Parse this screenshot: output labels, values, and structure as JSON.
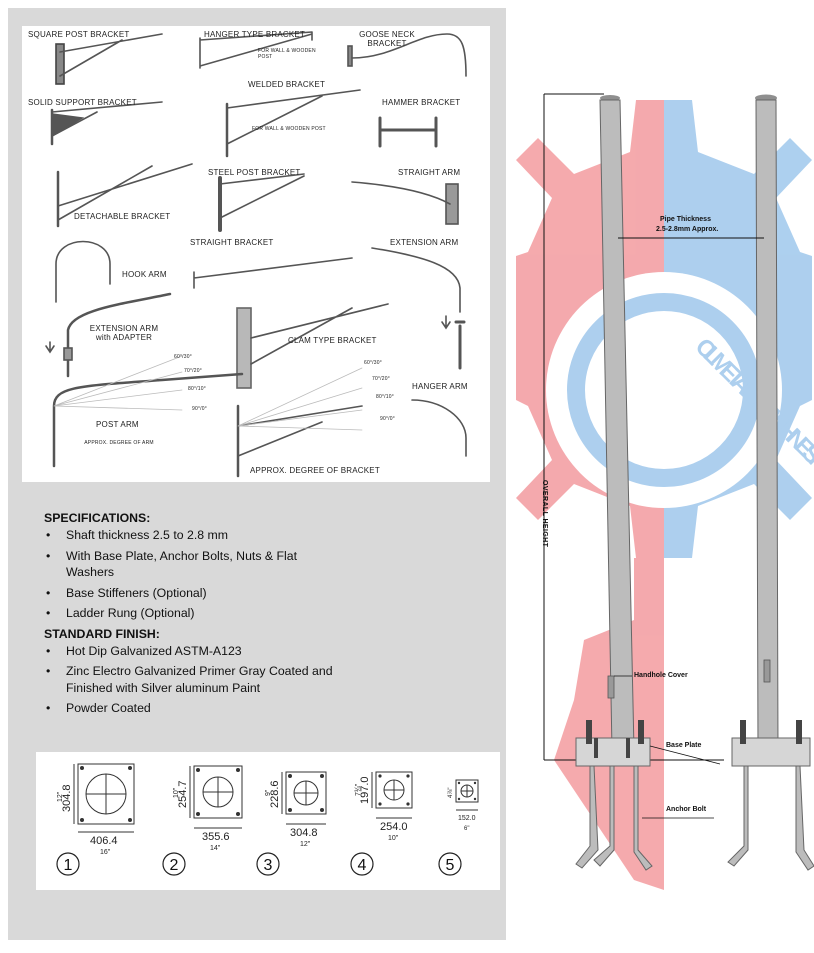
{
  "brackets": {
    "square_post": "SQUARE POST BRACKET",
    "hanger_type": "HANGER TYPE BRACKET",
    "hanger_note": "FOR WALL & WOODEN POST",
    "goose_neck": "GOOSE NECK BRACKET",
    "solid_support": "SOLID SUPPORT BRACKET",
    "welded": "WELDED BRACKET",
    "welded_note": "FOR WALL & WOODEN POST",
    "hammer": "HAMMER BRACKET",
    "detachable": "DETACHABLE BRACKET",
    "steel_post": "STEEL POST BRACKET",
    "straight_arm": "STRAIGHT ARM",
    "straight_bracket": "STRAIGHT BRACKET",
    "extension_arm": "EXTENSION ARM",
    "hook_arm": "HOOK ARM",
    "extension_adapter": "EXTENSION ARM with ADAPTER",
    "clam_type": "CLAM TYPE BRACKET",
    "post_arm": "POST ARM",
    "approx_arm": "APPROX. DEGREE OF ARM",
    "hanger_arm": "HANGER ARM",
    "approx_bracket": "APPROX. DEGREE OF BRACKET",
    "deg_arm": [
      "60°/30°",
      "70°/20°",
      "80°/10°",
      "90°/0°"
    ],
    "deg_bracket": [
      "60°/30°",
      "70°/20°",
      "80°/10°",
      "90°/0°"
    ]
  },
  "specs": {
    "heading": "SPECIFICATIONS:",
    "items": [
      "Shaft thickness 2.5 to 2.8 mm",
      "With Base Plate, Anchor Bolts, Nuts & Flat Washers",
      "Base Stiffeners (Optional)",
      "Ladder Rung (Optional)"
    ],
    "finish_heading": "STANDARD FINISH:",
    "finish_items": [
      "Hot Dip Galvanized ASTM-A123",
      "Zinc Electro Galvanized Primer Gray Coated and Finished with Silver aluminum Paint",
      "Powder Coated"
    ]
  },
  "plates": [
    {
      "num": "1",
      "side": "304.8",
      "side_in": "12\"",
      "bottom": "406.4",
      "bottom_in": "16\""
    },
    {
      "num": "2",
      "side": "254.7",
      "side_in": "10\"",
      "bottom": "355.6",
      "bottom_in": "14\""
    },
    {
      "num": "3",
      "side": "228.6",
      "side_in": "9\"",
      "bottom": "304.8",
      "bottom_in": "12\""
    },
    {
      "num": "4",
      "side": "197.0",
      "side_in": "7¾\"",
      "bottom": "254.0",
      "bottom_in": "10\""
    },
    {
      "num": "5",
      "side": "",
      "side_in": "4⅞\"",
      "bottom": "152.0",
      "bottom_in": "6\""
    }
  ],
  "pole": {
    "pipe_thickness": "Pipe Thickness",
    "pipe_thickness_value": "2.5-2.8mm Approx.",
    "overall_height": "OVERALL HEIGHT",
    "handhole": "Handhole Cover",
    "base_plate": "Base Plate",
    "anchor_bolt": "Anchor Bolt",
    "watermark": "CIL METALS MACHINE SHOP"
  },
  "colors": {
    "panel_bg": "#d9d9d9",
    "gear_red": "#f4a5a9",
    "gear_blue": "#a9cdee",
    "pole_gray": "#bcbcbc"
  }
}
